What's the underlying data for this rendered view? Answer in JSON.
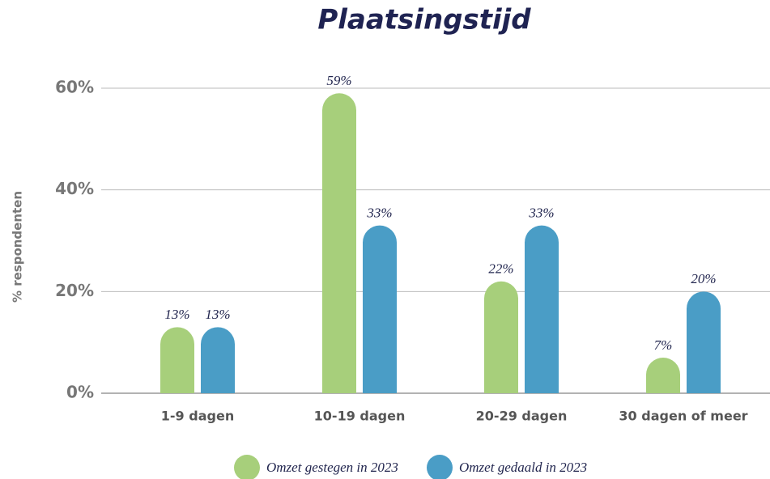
{
  "chart_data": {
    "type": "bar",
    "title": "Plaatsingstijd",
    "y_label": "% respondenten",
    "categories": [
      "1-9 dagen",
      "10-19 dagen",
      "20-29 dagen",
      "30 dagen of meer"
    ],
    "series": [
      {
        "name": "Omzet gestegen in 2023",
        "color": "#a7cf7b",
        "values": [
          13,
          59,
          22,
          7
        ],
        "value_labels": [
          "13%",
          "59%",
          "22%",
          "7%"
        ]
      },
      {
        "name": "Omzet gedaald in 2023",
        "color": "#4a9dc6",
        "values": [
          13,
          33,
          33,
          20
        ],
        "value_labels": [
          "13%",
          "33%",
          "33%",
          "20%"
        ]
      }
    ],
    "ylim": [
      0,
      60
    ],
    "yticks": [
      {
        "value": 0,
        "label": "0%"
      },
      {
        "value": 20,
        "label": "20%"
      },
      {
        "value": 40,
        "label": "40%"
      },
      {
        "value": 60,
        "label": "60%"
      }
    ],
    "grid": true,
    "legend": "bottom"
  }
}
